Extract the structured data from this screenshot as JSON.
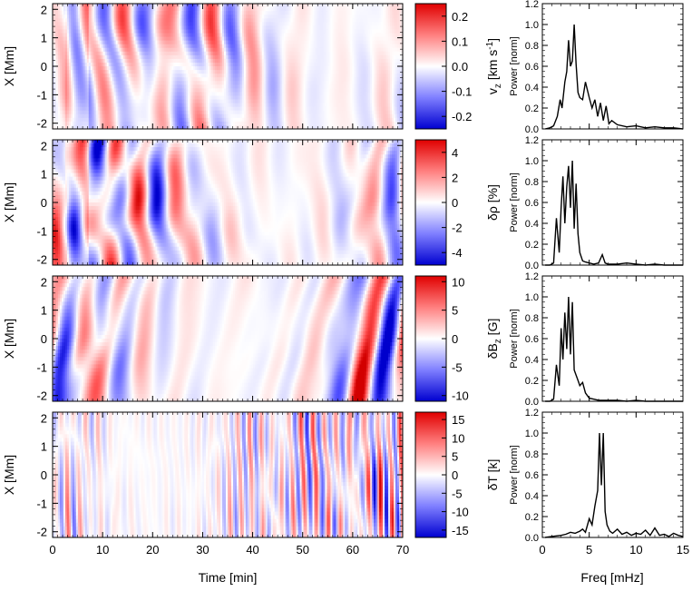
{
  "time_axis": {
    "label": "Time [min]",
    "ticks": [
      "0",
      "10",
      "20",
      "30",
      "40",
      "50",
      "60",
      "70"
    ],
    "range": [
      0,
      70
    ]
  },
  "x_axis_label": "X [Mm]",
  "x_ticks": [
    "-2",
    "-1",
    "0",
    "1",
    "2"
  ],
  "freq_axis": {
    "label": "Freq [mHz]",
    "ticks": [
      "0",
      "5",
      "10",
      "15"
    ],
    "range": [
      0,
      15
    ]
  },
  "power_label": "Power [norm]",
  "power_ticks": [
    "0.0",
    "0.2",
    "0.4",
    "0.6",
    "0.8",
    "1.0",
    "1.2"
  ],
  "colors": {
    "positive": "#ff0000",
    "zero": "#ffffff",
    "negative": "#0000ff"
  },
  "chart_data": [
    {
      "type": "heatmap",
      "quantity": "vz",
      "colorbar_label": "v_z [km s^-1]",
      "colorbar_ticks": [
        "0.2",
        "0.1",
        "0.0",
        "-0.1",
        "-0.2"
      ],
      "colorbar_range": [
        -0.25,
        0.25
      ],
      "x_range_min": [
        0,
        70
      ],
      "y_range_Mm": [
        -2.2,
        2.2
      ],
      "pattern": "vertical-stripes",
      "stripe_freq_mHz": 3.2
    },
    {
      "type": "line",
      "quantity": "vz power",
      "x": [
        0.3,
        0.8,
        1.2,
        1.6,
        1.9,
        2.1,
        2.4,
        2.6,
        2.8,
        3.0,
        3.2,
        3.4,
        3.6,
        3.8,
        4.0,
        4.3,
        4.6,
        5.0,
        5.3,
        5.6,
        5.9,
        6.2,
        6.5,
        6.8,
        7.1,
        7.4,
        8,
        9,
        10,
        11,
        12,
        13,
        14,
        15
      ],
      "y": [
        0.0,
        0.01,
        0.03,
        0.12,
        0.28,
        0.2,
        0.45,
        0.55,
        0.85,
        0.6,
        0.65,
        1.0,
        0.62,
        0.35,
        0.3,
        0.28,
        0.45,
        0.3,
        0.2,
        0.28,
        0.12,
        0.25,
        0.08,
        0.22,
        0.05,
        0.08,
        0.04,
        0.02,
        0.03,
        0.01,
        0.02,
        0.01,
        0.01,
        0.0
      ],
      "xlim": [
        0,
        15
      ],
      "ylim": [
        0,
        1.2
      ]
    },
    {
      "type": "heatmap",
      "quantity": "drho",
      "colorbar_label": "δρ [%]",
      "colorbar_ticks": [
        "4",
        "2",
        "0",
        "-2",
        "-4"
      ],
      "colorbar_range": [
        -5,
        5
      ],
      "x_range_min": [
        0,
        70
      ],
      "y_range_Mm": [
        -2.2,
        2.2
      ],
      "pattern": "vertical-stripes",
      "stripe_freq_mHz": 2.8
    },
    {
      "type": "line",
      "quantity": "drho power",
      "x": [
        0.3,
        0.8,
        1.2,
        1.5,
        1.8,
        2.0,
        2.2,
        2.4,
        2.6,
        2.8,
        3.0,
        3.2,
        3.4,
        3.6,
        3.8,
        4.0,
        4.3,
        4.6,
        5.0,
        5.5,
        6.0,
        6.4,
        6.7,
        7.0,
        8,
        9,
        10,
        11,
        12,
        13,
        14,
        15
      ],
      "y": [
        0.0,
        0.0,
        0.02,
        0.45,
        0.12,
        0.55,
        0.85,
        0.4,
        0.75,
        0.95,
        0.55,
        1.0,
        0.35,
        0.78,
        0.3,
        0.12,
        0.04,
        0.03,
        0.02,
        0.01,
        0.02,
        0.1,
        0.02,
        0.01,
        0.01,
        0.02,
        0.01,
        0.0,
        0.01,
        0.0,
        0.0,
        0.0
      ],
      "xlim": [
        0,
        15
      ],
      "ylim": [
        0,
        1.2
      ]
    },
    {
      "type": "heatmap",
      "quantity": "dBz",
      "colorbar_label": "δB_z [G]",
      "colorbar_ticks": [
        "10",
        "5",
        "0",
        "-5",
        "-10"
      ],
      "colorbar_range": [
        -11,
        11
      ],
      "x_range_min": [
        0,
        70
      ],
      "y_range_Mm": [
        -2.2,
        2.2
      ],
      "pattern": "vertical-stripes",
      "stripe_freq_mHz": 2.6
    },
    {
      "type": "line",
      "quantity": "dBz power",
      "x": [
        0.3,
        0.8,
        1.2,
        1.5,
        1.8,
        2.0,
        2.2,
        2.4,
        2.6,
        2.8,
        3.0,
        3.2,
        3.4,
        3.6,
        3.8,
        4.0,
        4.3,
        4.6,
        5.0,
        5.5,
        6.0,
        7.0,
        8,
        9,
        10,
        11,
        12,
        13,
        14,
        15
      ],
      "y": [
        0.0,
        0.0,
        0.02,
        0.35,
        0.15,
        0.7,
        0.4,
        0.85,
        0.5,
        1.0,
        0.45,
        0.95,
        0.3,
        0.25,
        0.2,
        0.15,
        0.18,
        0.08,
        0.03,
        0.02,
        0.01,
        0.01,
        0.01,
        0.0,
        0.01,
        0.0,
        0.0,
        0.0,
        0.0,
        0.0
      ],
      "xlim": [
        0,
        15
      ],
      "ylim": [
        0,
        1.2
      ]
    },
    {
      "type": "heatmap",
      "quantity": "dT",
      "colorbar_label": "δT [k]",
      "colorbar_ticks": [
        "15",
        "10",
        "5",
        "0",
        "-5",
        "-10",
        "-15"
      ],
      "colorbar_range": [
        -17,
        17
      ],
      "x_range_min": [
        0,
        70
      ],
      "y_range_Mm": [
        -2.2,
        2.2
      ],
      "pattern": "fine-vertical-stripes",
      "stripe_freq_mHz": 6.3
    },
    {
      "type": "line",
      "quantity": "dT power",
      "x": [
        0.3,
        1,
        2,
        2.5,
        3,
        3.5,
        4,
        4.3,
        4.6,
        5.0,
        5.3,
        5.6,
        5.9,
        6.1,
        6.3,
        6.5,
        6.7,
        6.9,
        7.2,
        7.5,
        8.0,
        8.5,
        9,
        9.5,
        10,
        10.5,
        11,
        11.5,
        12,
        12.5,
        13,
        13.5,
        14,
        14.5,
        15
      ],
      "y": [
        0.0,
        0.01,
        0.02,
        0.03,
        0.05,
        0.04,
        0.06,
        0.08,
        0.05,
        0.18,
        0.12,
        0.3,
        0.45,
        1.0,
        0.5,
        1.0,
        0.25,
        0.12,
        0.06,
        0.04,
        0.08,
        0.03,
        0.05,
        0.02,
        0.04,
        0.03,
        0.07,
        0.02,
        0.09,
        0.02,
        0.03,
        0.01,
        0.04,
        0.02,
        0.01
      ],
      "xlim": [
        0,
        15
      ],
      "ylim": [
        0,
        1.2
      ]
    }
  ]
}
